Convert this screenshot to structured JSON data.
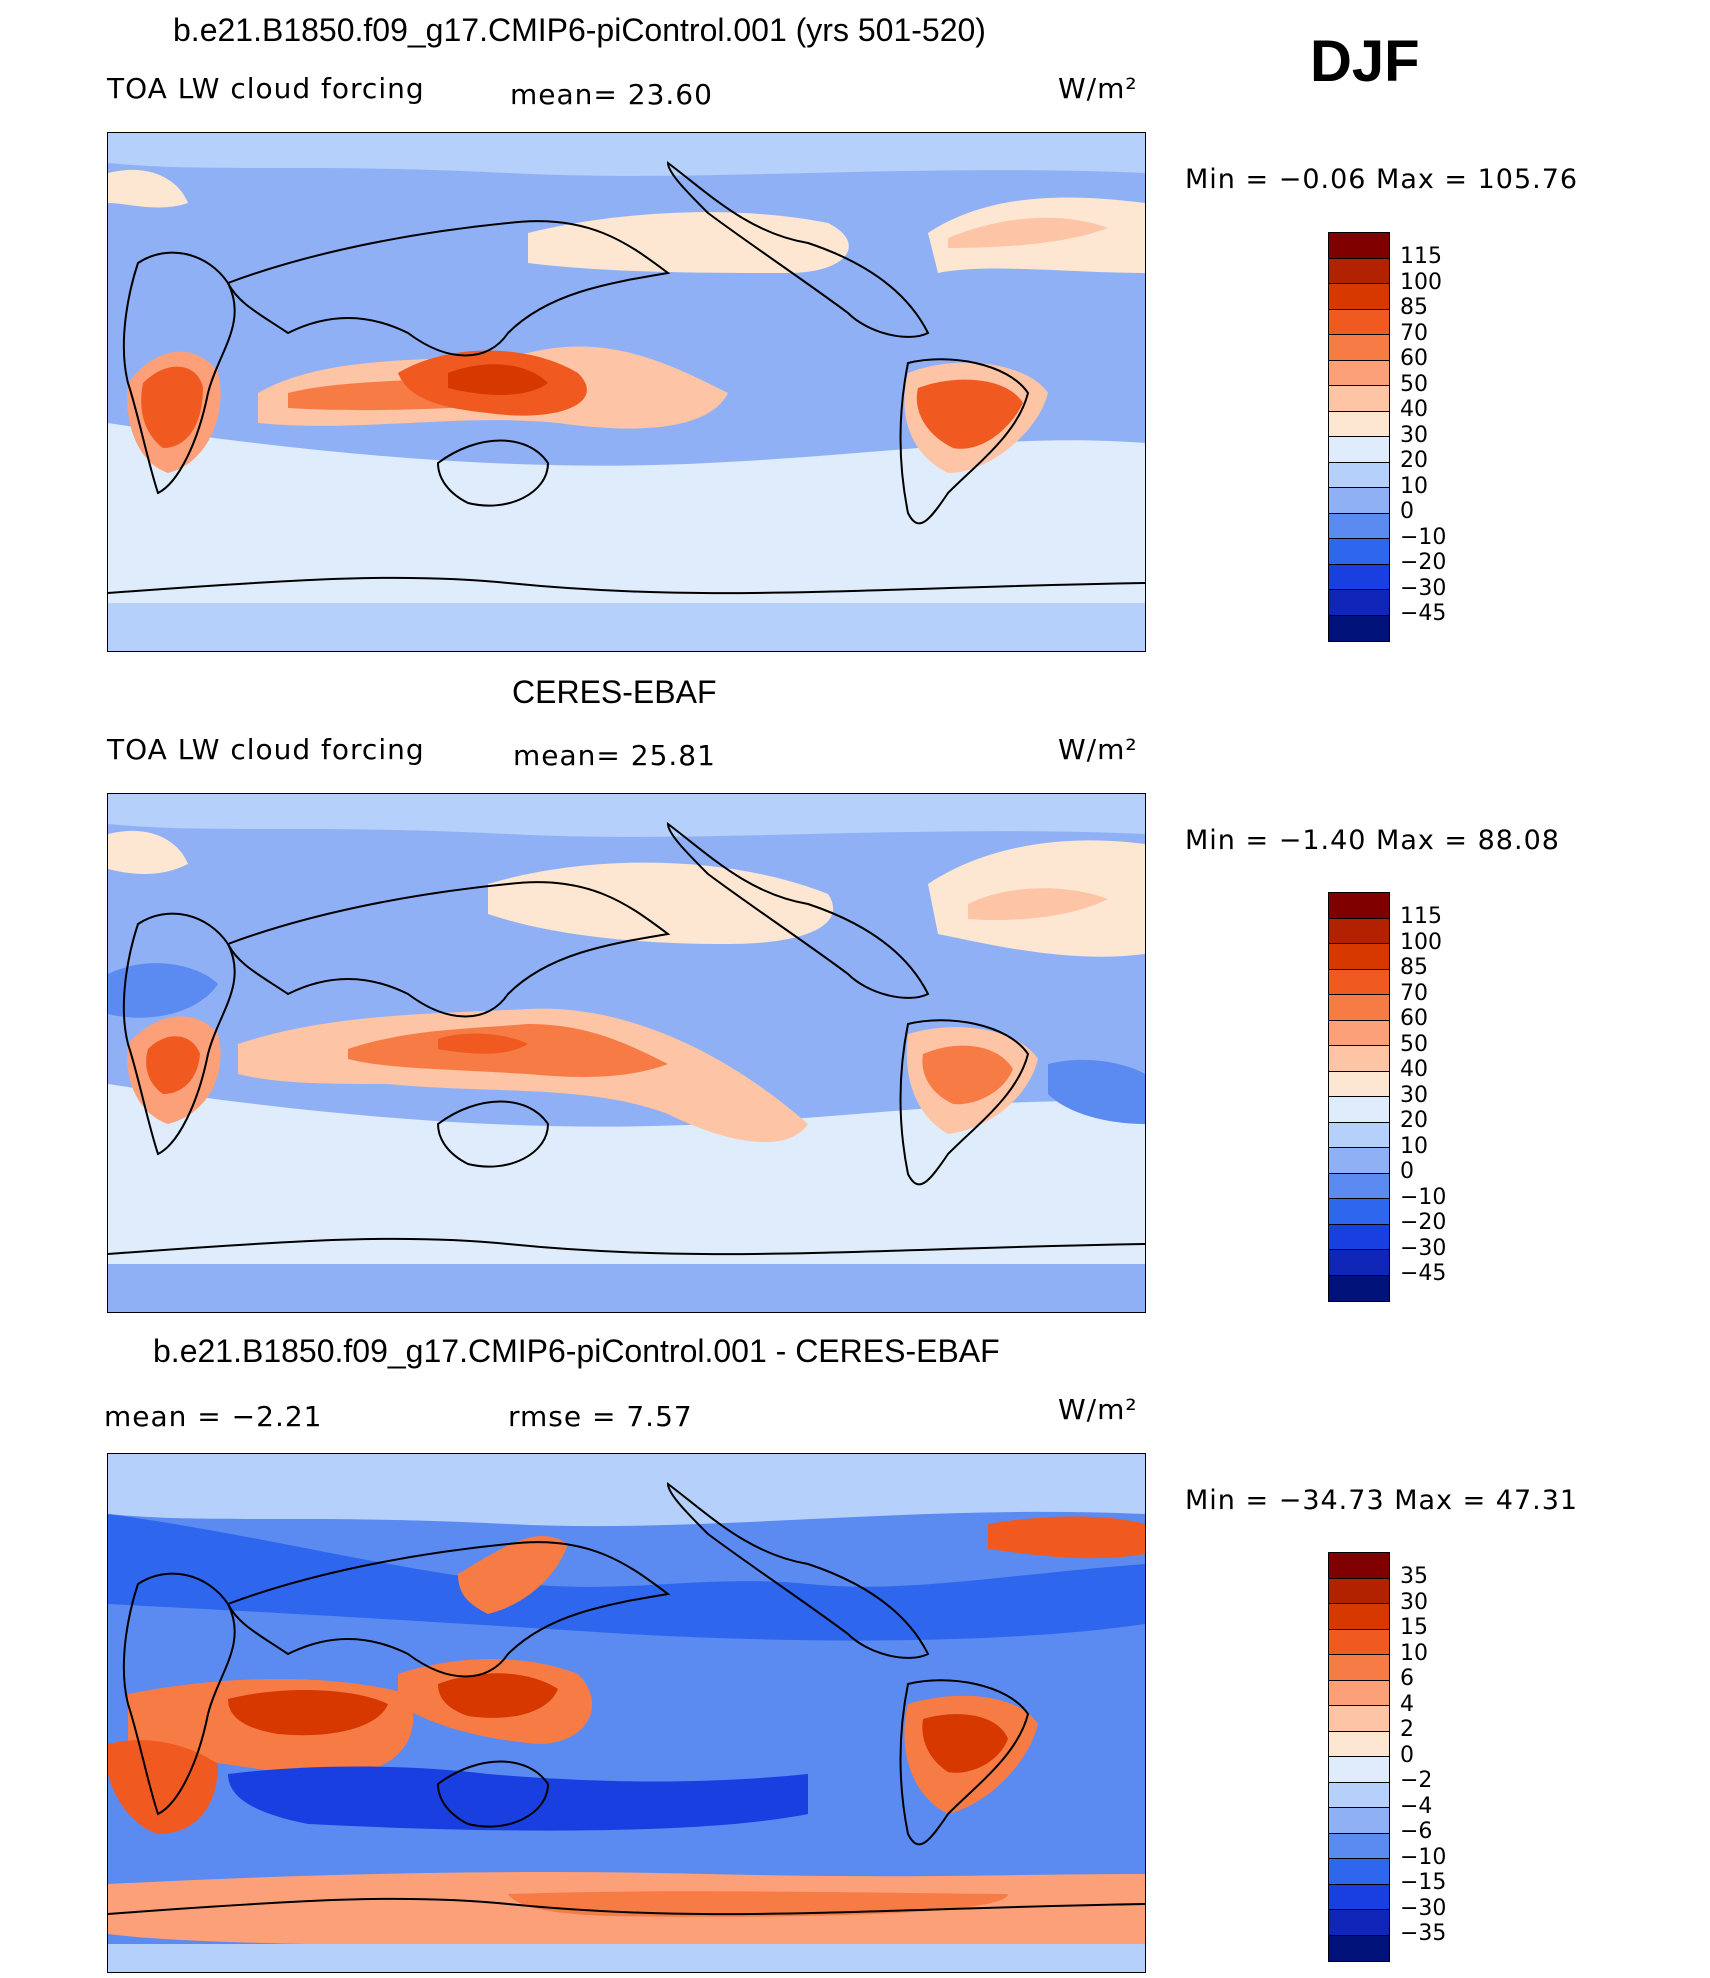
{
  "season": "DJF",
  "panels": [
    {
      "title": "b.e21.B1850.f09_g17.CMIP6-piControl.001 (yrs 501-520)",
      "left_label": "TOA LW cloud forcing",
      "center_label": "mean=   23.60",
      "units": "W/m²",
      "minmax": "Min  =   −0.06  Max  =  105.76",
      "colorbar_labels": [
        "115",
        "100",
        "85",
        "70",
        "60",
        "50",
        "40",
        "30",
        "20",
        "10",
        "0",
        "−10",
        "−20",
        "−30",
        "−45"
      ],
      "colorbar_colors": [
        "#800000",
        "#b22200",
        "#d63800",
        "#f05a20",
        "#f77b45",
        "#fca07a",
        "#fdc4a5",
        "#fde6d2",
        "#dfecfb",
        "#b5d0fb",
        "#8fb0f5",
        "#5b8bf0",
        "#2f66ee",
        "#1a3fe0",
        "#0f26b8",
        "#00117a"
      ]
    },
    {
      "title": "CERES-EBAF",
      "left_label": "TOA LW cloud forcing",
      "center_label": "mean=   25.81",
      "units": "W/m²",
      "minmax": "Min  =   −1.40  Max  =   88.08",
      "colorbar_labels": [
        "115",
        "100",
        "85",
        "70",
        "60",
        "50",
        "40",
        "30",
        "20",
        "10",
        "0",
        "−10",
        "−20",
        "−30",
        "−45"
      ],
      "colorbar_colors": [
        "#800000",
        "#b22200",
        "#d63800",
        "#f05a20",
        "#f77b45",
        "#fca07a",
        "#fdc4a5",
        "#fde6d2",
        "#dfecfb",
        "#b5d0fb",
        "#8fb0f5",
        "#5b8bf0",
        "#2f66ee",
        "#1a3fe0",
        "#0f26b8",
        "#00117a"
      ]
    },
    {
      "title": "b.e21.B1850.f09_g17.CMIP6-piControl.001 - CERES-EBAF",
      "left_label": "mean  =    −2.21",
      "center_label": "rmse  =     7.57",
      "units": "W/m²",
      "minmax": "Min  = −34.73  Max  =   47.31",
      "colorbar_labels": [
        "35",
        "30",
        "15",
        "10",
        "6",
        "4",
        "2",
        "0",
        "−2",
        "−4",
        "−6",
        "−10",
        "−15",
        "−30",
        "−35"
      ],
      "colorbar_colors": [
        "#800000",
        "#b22200",
        "#d63800",
        "#f05a20",
        "#f77b45",
        "#fca07a",
        "#fdc4a5",
        "#fde6d2",
        "#dfecfb",
        "#b5d0fb",
        "#8fb0f5",
        "#5b8bf0",
        "#2f66ee",
        "#1a3fe0",
        "#0f26b8",
        "#00117a"
      ]
    }
  ]
}
